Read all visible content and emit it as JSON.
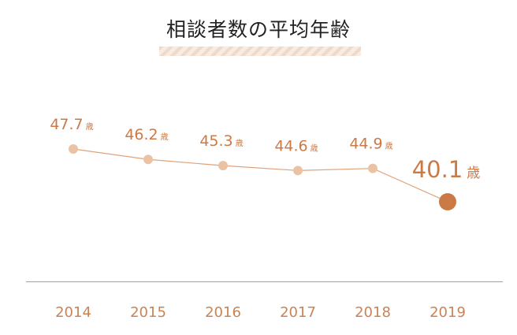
{
  "title": "相談者数の平均年齢",
  "colors": {
    "title": "#222222",
    "underline": "#efd9c8",
    "line": "#dfa27a",
    "point": "#ebc3a4",
    "highlight": "#cc7a45",
    "label": "#cc7a45",
    "axis": "#d2946b",
    "tick": "#c98356"
  },
  "chart_data": {
    "type": "line",
    "title": "相談者数の平均年齢",
    "categories": [
      "2014",
      "2015",
      "2016",
      "2017",
      "2018",
      "2019"
    ],
    "values": [
      47.7,
      46.2,
      45.3,
      44.6,
      44.9,
      40.1
    ],
    "value_labels": [
      "47.7",
      "46.2",
      "45.3",
      "44.6",
      "44.9",
      "40.1"
    ],
    "unit": "歳",
    "highlight_index": 5,
    "ylim": [
      35,
      50
    ],
    "grid": false,
    "legend": "none"
  }
}
